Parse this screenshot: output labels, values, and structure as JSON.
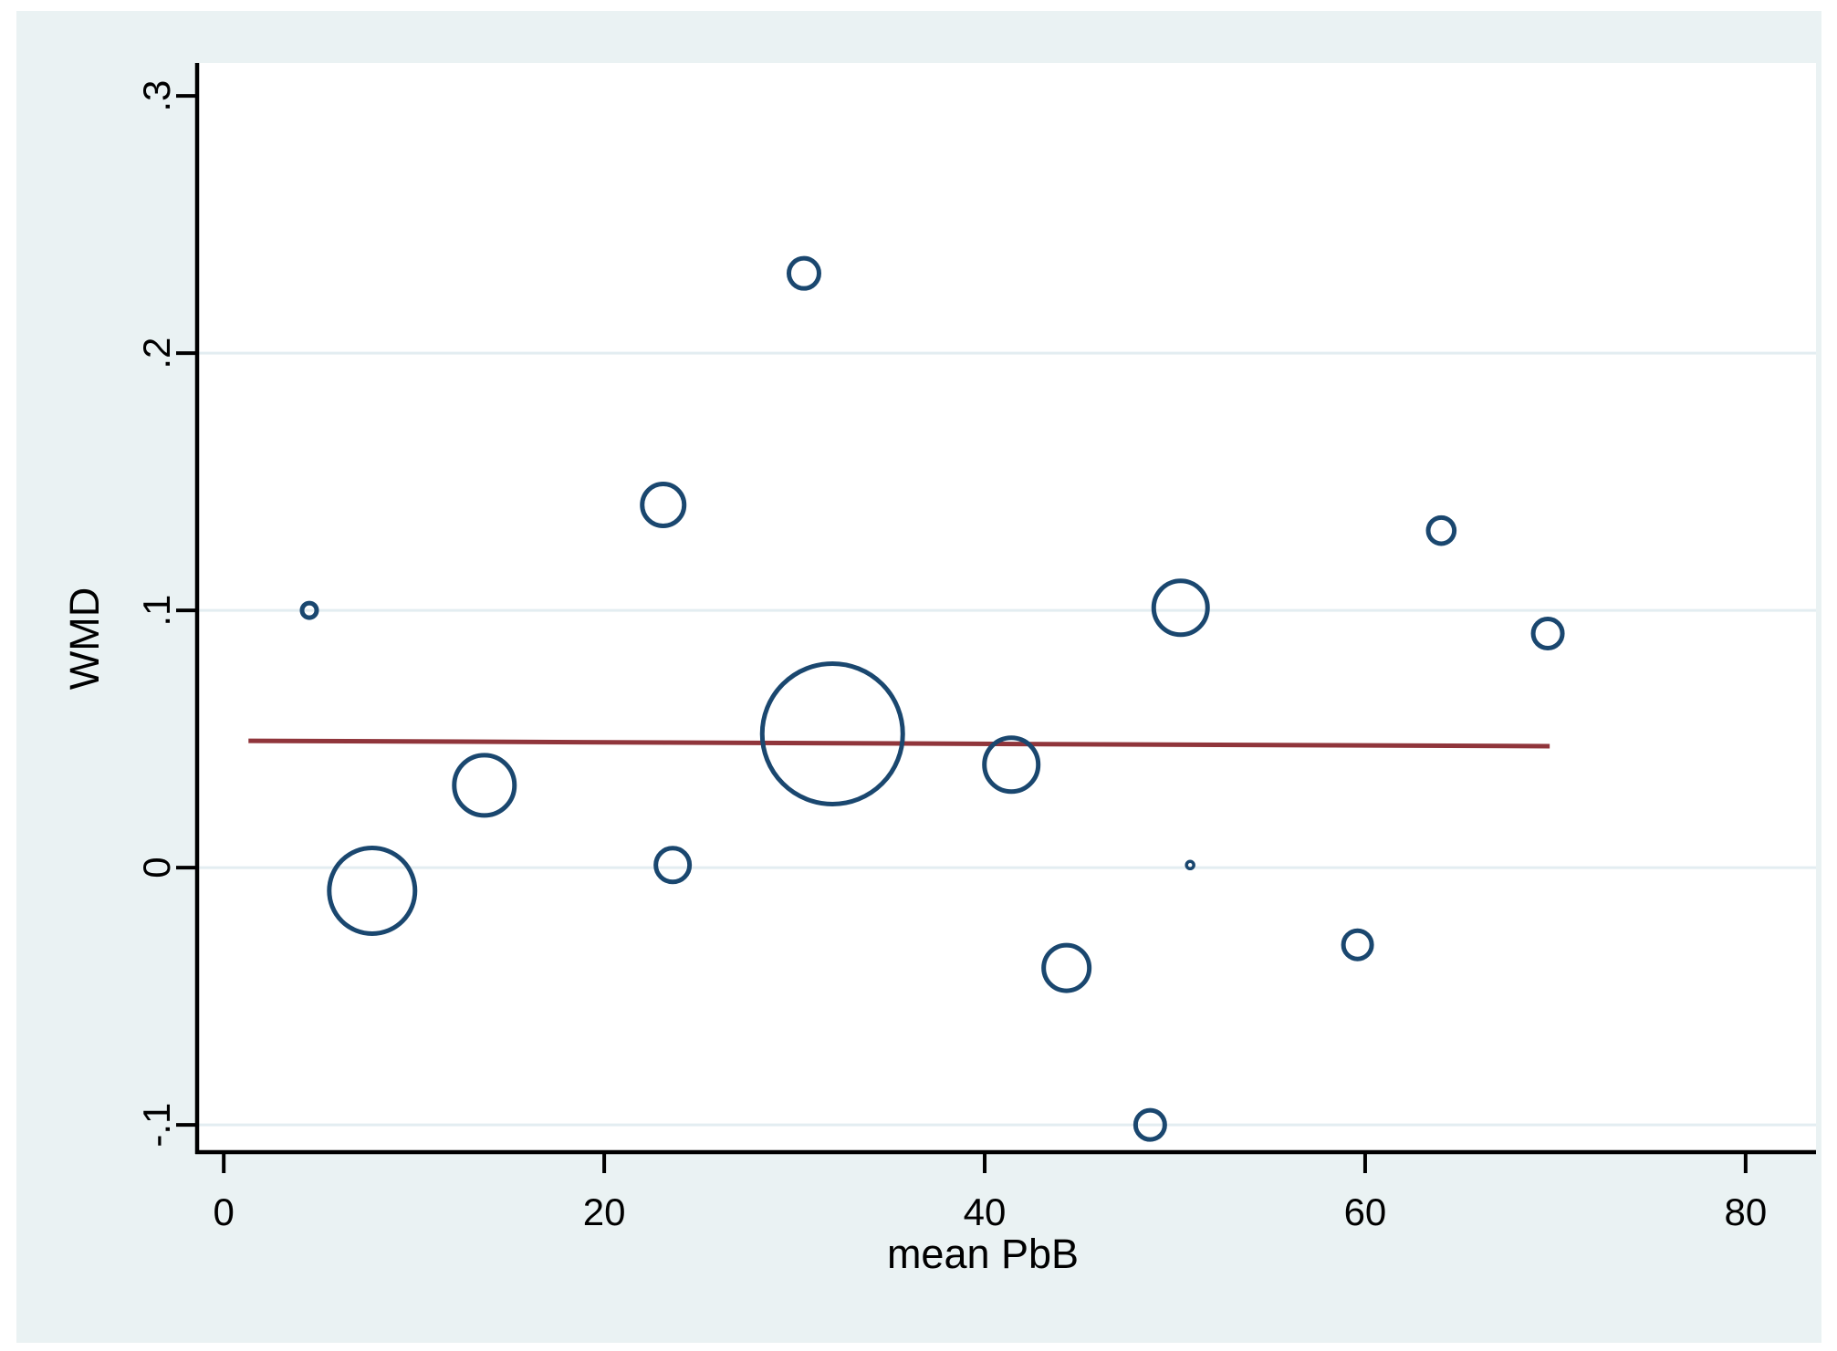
{
  "figure": {
    "xlabel": "mean PbB",
    "ylabel": "WMD"
  },
  "chart_data": {
    "type": "scatter",
    "subtype": "bubble-meta-regression",
    "title": "",
    "xlabel": "mean PbB",
    "ylabel": "WMD",
    "xlim": [
      -1.4,
      83.7
    ],
    "ylim": [
      -0.1106,
      0.3128
    ],
    "grid": "horizontal-only",
    "x_ticks": [
      {
        "value": 0,
        "label": "0"
      },
      {
        "value": 20,
        "label": "20"
      },
      {
        "value": 40,
        "label": "40"
      },
      {
        "value": 60,
        "label": "60"
      },
      {
        "value": 80,
        "label": "80"
      }
    ],
    "y_ticks": [
      {
        "value": 0.3,
        "label": ".3",
        "gridline": false
      },
      {
        "value": 0.2,
        "label": ".2",
        "gridline": true
      },
      {
        "value": 0.1,
        "label": ".1",
        "gridline": true
      },
      {
        "value": 0.0,
        "label": "0",
        "gridline": true
      },
      {
        "value": -0.1,
        "label": "-.1",
        "gridline": true
      }
    ],
    "points": [
      {
        "x": 4.5,
        "y": 0.1,
        "r": 8
      },
      {
        "x": 7.8,
        "y": -0.009,
        "r": 47
      },
      {
        "x": 13.7,
        "y": 0.032,
        "r": 33
      },
      {
        "x": 23.1,
        "y": 0.141,
        "r": 23
      },
      {
        "x": 23.6,
        "y": 0.001,
        "r": 18.5
      },
      {
        "x": 30.5,
        "y": 0.231,
        "r": 16.5
      },
      {
        "x": 32.0,
        "y": 0.052,
        "r": 77
      },
      {
        "x": 41.4,
        "y": 0.04,
        "r": 29.5
      },
      {
        "x": 44.3,
        "y": -0.039,
        "r": 25
      },
      {
        "x": 48.7,
        "y": -0.1,
        "r": 16
      },
      {
        "x": 50.3,
        "y": 0.101,
        "r": 29.5
      },
      {
        "x": 50.8,
        "y": 0.001,
        "r": 4
      },
      {
        "x": 59.6,
        "y": -0.03,
        "r": 15.5
      },
      {
        "x": 64.0,
        "y": 0.131,
        "r": 14.3
      },
      {
        "x": 69.6,
        "y": 0.091,
        "r": 16
      }
    ],
    "regression_line": {
      "x1": 1.3,
      "y1": 0.0493,
      "x2": 69.7,
      "y2": 0.0472
    },
    "colors": {
      "canvas": "#eaf2f3",
      "plot_bg": "#ffffff",
      "bubble": "#1a476f",
      "line": "#90353b",
      "grid": "#e3edf1",
      "axis": "#000000"
    }
  }
}
